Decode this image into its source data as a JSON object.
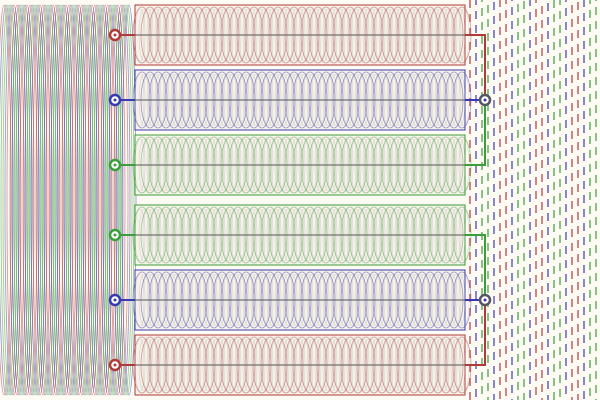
{
  "rows": [
    {
      "color": "#b03a3a"
    },
    {
      "color": "#3a3ab0"
    },
    {
      "color": "#3a9e3a"
    },
    {
      "color": "#3a9e3a"
    },
    {
      "color": "#3a3ab0"
    },
    {
      "color": "#b03a3a"
    }
  ]
}
